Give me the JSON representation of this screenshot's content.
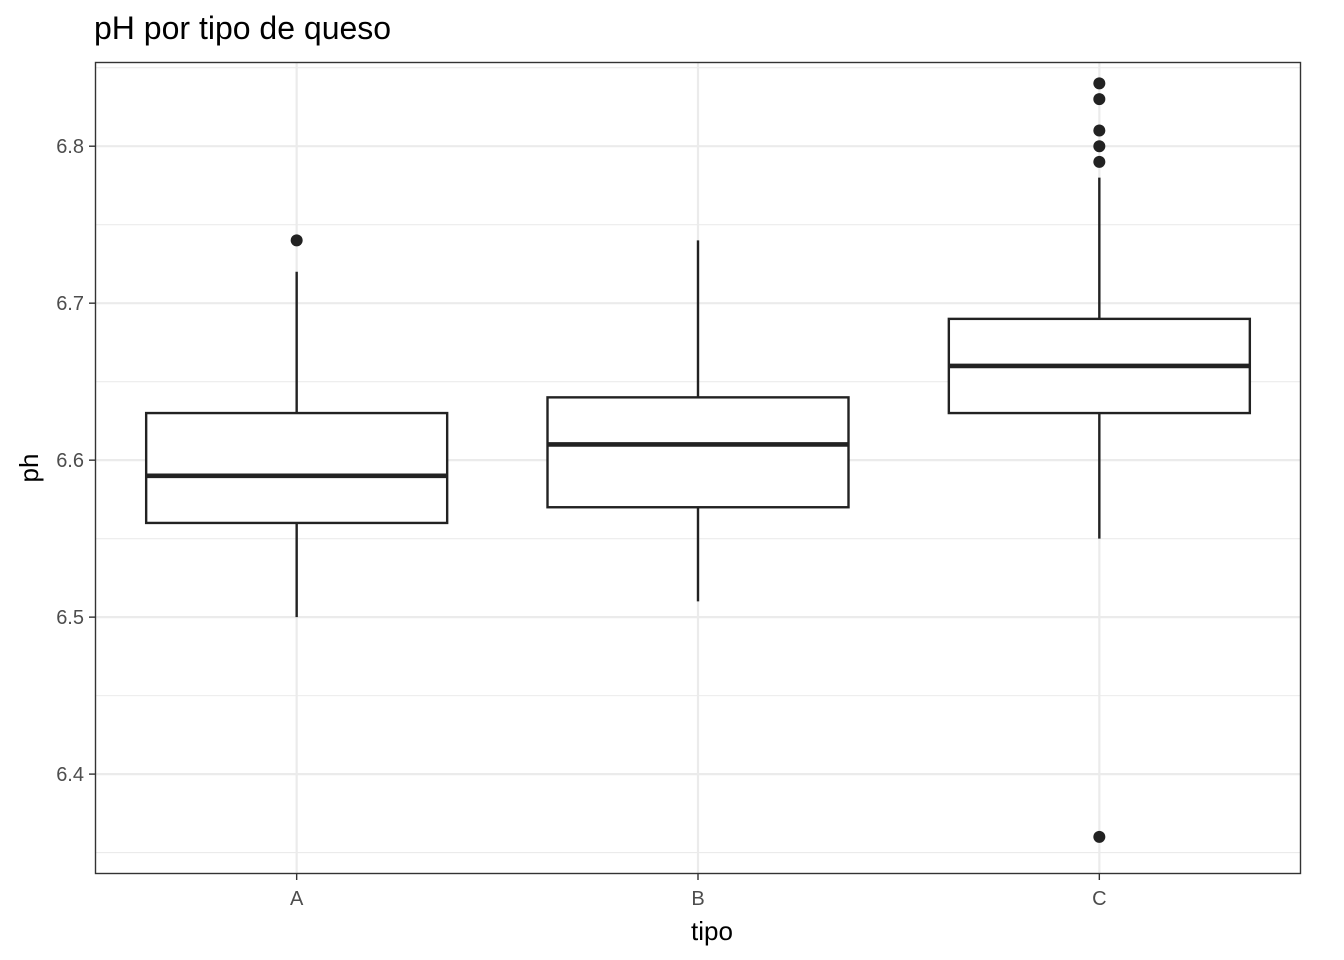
{
  "chart_data": {
    "type": "boxplot",
    "title": "pH por tipo de queso",
    "xlabel": "tipo",
    "ylabel": "ph",
    "categories": [
      "A",
      "B",
      "C"
    ],
    "ylim": [
      6.337,
      6.853
    ],
    "y_ticks": [
      6.4,
      6.5,
      6.6,
      6.7,
      6.8
    ],
    "y_tick_labels": [
      "6.4",
      "6.5",
      "6.6",
      "6.7",
      "6.8"
    ],
    "grid": true,
    "boxes": [
      {
        "category": "A",
        "whisker_low": 6.5,
        "q1": 6.56,
        "median": 6.59,
        "q3": 6.63,
        "whisker_high": 6.72,
        "outliers": [
          6.74
        ]
      },
      {
        "category": "B",
        "whisker_low": 6.51,
        "q1": 6.57,
        "median": 6.61,
        "q3": 6.64,
        "whisker_high": 6.74,
        "outliers": []
      },
      {
        "category": "C",
        "whisker_low": 6.55,
        "q1": 6.63,
        "median": 6.66,
        "q3": 6.69,
        "whisker_high": 6.78,
        "outliers": [
          6.84,
          6.83,
          6.81,
          6.8,
          6.79,
          6.36
        ]
      }
    ],
    "colors": {
      "box_stroke": "#222222",
      "box_fill": "#ffffff",
      "grid": "#ebebeb",
      "panel_border": "#333333"
    }
  }
}
